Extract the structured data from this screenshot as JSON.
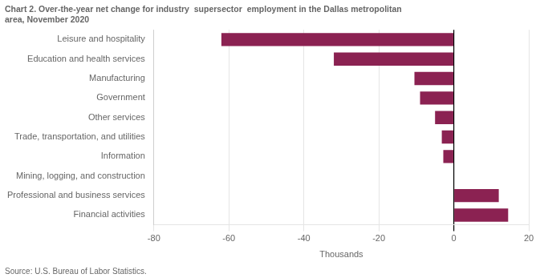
{
  "chart_data": {
    "type": "bar",
    "orientation": "horizontal",
    "title": [
      "Chart 2. Over-the-year net change for industry  supersector  employment in the Dallas metropolitan",
      "area, November 2020"
    ],
    "source": "Source: U.S. Bureau of Labor Statistics.",
    "xlabel": "Thousands",
    "categories": [
      "Financial activities",
      "Professional and business services",
      "Mining, logging, and construction",
      "Information",
      "Trade, transportation, and utilities",
      "Other services",
      "Government",
      "Manufacturing",
      "Education and health services",
      "Leisure and hospitality"
    ],
    "values": [
      14.5,
      12.0,
      0.0,
      -2.8,
      -3.2,
      -5.0,
      -9.0,
      -10.5,
      -32.0,
      -62.0
    ],
    "color": "#8B2252",
    "xlim": [
      -80,
      20
    ],
    "xticks": [
      -80,
      -60,
      -40,
      -20,
      0,
      20
    ],
    "grid": true
  }
}
